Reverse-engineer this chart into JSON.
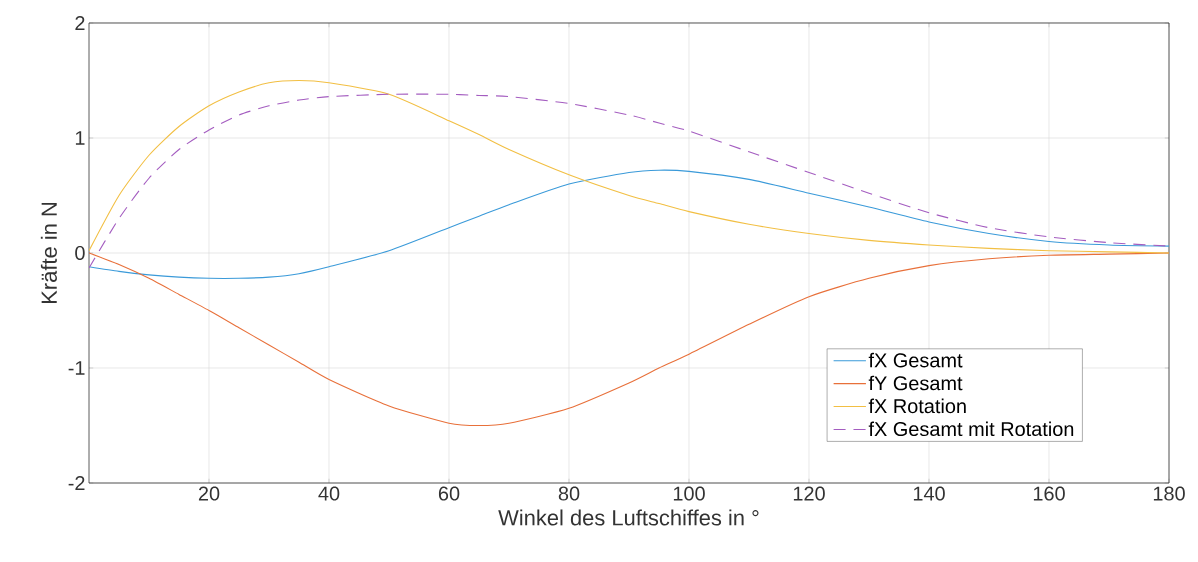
{
  "chart_data": {
    "type": "line",
    "xlabel": "Winkel des Luftschiffes in °",
    "ylabel": "Kräfte in N",
    "x": [
      0,
      5,
      10,
      15,
      20,
      25,
      30,
      35,
      40,
      50,
      60,
      65,
      70,
      80,
      90,
      95,
      100,
      110,
      120,
      130,
      140,
      150,
      160,
      170,
      180
    ],
    "series": [
      {
        "name": "fX Gesamt",
        "color": "#3a9ad9",
        "values": [
          -0.12,
          -0.16,
          -0.19,
          -0.21,
          -0.22,
          -0.22,
          -0.21,
          -0.18,
          -0.12,
          0.02,
          0.22,
          0.32,
          0.42,
          0.6,
          0.7,
          0.72,
          0.71,
          0.64,
          0.52,
          0.4,
          0.27,
          0.17,
          0.1,
          0.07,
          0.06
        ]
      },
      {
        "name": "fY Gesamt",
        "color": "#e8703a",
        "values": [
          0,
          -0.1,
          -0.22,
          -0.36,
          -0.5,
          -0.65,
          -0.8,
          -0.95,
          -1.1,
          -1.33,
          -1.48,
          -1.5,
          -1.48,
          -1.35,
          -1.13,
          -1.0,
          -0.88,
          -0.62,
          -0.38,
          -0.22,
          -0.11,
          -0.05,
          -0.02,
          -0.01,
          0
        ]
      },
      {
        "name": "fX Rotation",
        "color": "#f2bf43",
        "values": [
          0.02,
          0.5,
          0.85,
          1.1,
          1.28,
          1.4,
          1.48,
          1.5,
          1.48,
          1.38,
          1.15,
          1.03,
          0.9,
          0.68,
          0.5,
          0.43,
          0.36,
          0.25,
          0.17,
          0.11,
          0.07,
          0.04,
          0.02,
          0.01,
          0
        ]
      },
      {
        "name": "fX Gesamt mit Rotation",
        "color": "#a45dc0",
        "line_style": "dashed",
        "values": [
          -0.13,
          0.3,
          0.65,
          0.9,
          1.07,
          1.2,
          1.28,
          1.33,
          1.36,
          1.38,
          1.38,
          1.37,
          1.36,
          1.3,
          1.2,
          1.13,
          1.06,
          0.88,
          0.7,
          0.52,
          0.35,
          0.22,
          0.14,
          0.09,
          0.06
        ]
      }
    ],
    "xlim": [
      0,
      180
    ],
    "xticks": [
      20,
      40,
      60,
      80,
      100,
      120,
      140,
      160,
      180
    ],
    "ylim": [
      -2,
      2
    ],
    "yticks": [
      -2,
      -1,
      0,
      1,
      2
    ],
    "grid": true,
    "legend": "bottom right"
  }
}
